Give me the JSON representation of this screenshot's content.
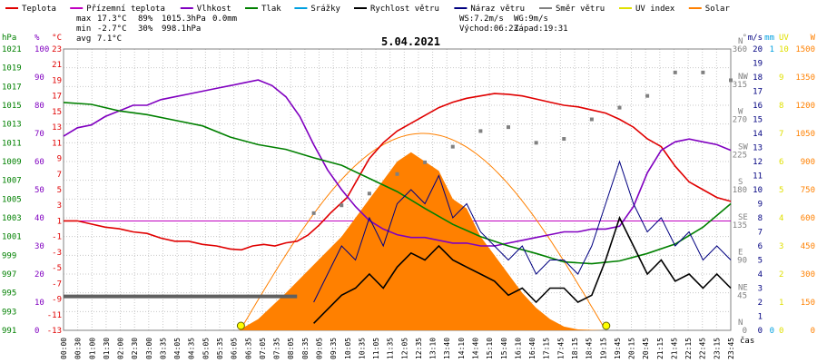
{
  "legend": [
    {
      "label": "Teplota",
      "color": "#e00000"
    },
    {
      "label": "Přízemní teplota",
      "color": "#c000c0"
    },
    {
      "label": "Vlhkost",
      "color": "#8000c0"
    },
    {
      "label": "Tlak",
      "color": "#008000"
    },
    {
      "label": "Srážky",
      "color": "#00a0e0"
    },
    {
      "label": "Rychlost větru",
      "color": "#000000"
    },
    {
      "label": "Náraz větru",
      "color": "#000080"
    },
    {
      "label": "Směr větru",
      "color": "#808080"
    },
    {
      "label": "UV index",
      "color": "#e0e000"
    },
    {
      "label": "Solar",
      "color": "#ff8000"
    }
  ],
  "stats": {
    "max": {
      "label": "max",
      "temp": "17.3°C",
      "hum": "89%",
      "press": "1015.3hPa",
      "rain": "0.0mm"
    },
    "min": {
      "label": "min",
      "temp": "-2.7°C",
      "hum": "30%",
      "press": "998.1hPa"
    },
    "avg": {
      "label": "avg",
      "temp": "7.1°C"
    }
  },
  "wind_stats": {
    "ws": "WS:7.2m/s",
    "wg": "WG:9m/s",
    "sunrise": "Východ:06:23",
    "sunset": "Západ:19:31"
  },
  "date": "5.04.2021",
  "xlabel": "čas",
  "colors": {
    "grid": "#c8c8c8",
    "solar_fill": "#ff8000",
    "solar_line": "#ff8000",
    "dir_marker": "#808080",
    "sun_marker": "#ffff00"
  },
  "chart_data": {
    "type": "line",
    "x_ticks": [
      "00:00",
      "00:30",
      "01:00",
      "01:30",
      "02:00",
      "02:30",
      "03:00",
      "03:35",
      "04:05",
      "04:35",
      "05:05",
      "05:35",
      "06:05",
      "06:35",
      "07:05",
      "07:35",
      "08:05",
      "08:35",
      "09:05",
      "09:35",
      "10:05",
      "10:35",
      "11:05",
      "11:35",
      "12:05",
      "12:35",
      "13:10",
      "13:40",
      "14:10",
      "14:40",
      "15:10",
      "15:40",
      "16:10",
      "16:40",
      "17:15",
      "17:45",
      "18:15",
      "18:45",
      "19:15",
      "19:45",
      "20:15",
      "20:45",
      "21:15",
      "21:45",
      "22:15",
      "22:45",
      "23:15",
      "23:45"
    ],
    "axes": {
      "hpa": {
        "unit": "hPa",
        "color": "#008000",
        "ticks": [
          "991",
          "993",
          "995",
          "997",
          "999",
          "1001",
          "1003",
          "1005",
          "1007",
          "1009",
          "1011",
          "1013",
          "1015",
          "1017",
          "1019",
          "1021"
        ]
      },
      "pct": {
        "unit": "%",
        "color": "#8000c0",
        "ticks": [
          "0",
          "10",
          "20",
          "30",
          "40",
          "50",
          "60",
          "70",
          "80",
          "90",
          "100"
        ]
      },
      "degc": {
        "unit": "°C",
        "color": "#e00000",
        "ticks": [
          "-13",
          "-11",
          "-9",
          "-7",
          "-5",
          "-3",
          "-1",
          "1",
          "3",
          "5",
          "7",
          "9",
          "11",
          "13",
          "15",
          "17",
          "19",
          "21",
          "23"
        ]
      },
      "dir": {
        "unit": "°",
        "color": "#808080",
        "ticks": [
          "0",
          "45",
          "90",
          "135",
          "180",
          "225",
          "270",
          "315",
          "360"
        ],
        "labels": [
          "N",
          "NE",
          "E",
          "SE",
          "S",
          "SW",
          "W",
          "NW",
          "N"
        ]
      },
      "ms": {
        "unit": "m/s",
        "color": "#000080",
        "ticks": [
          "0",
          "1",
          "2",
          "3",
          "4",
          "5",
          "6",
          "7",
          "8",
          "9",
          "10",
          "11",
          "12",
          "13",
          "14",
          "15",
          "16",
          "17",
          "18",
          "19",
          "20"
        ]
      },
      "mm": {
        "unit": "mm",
        "color": "#00a0e0",
        "ticks": [
          "0",
          "1"
        ]
      },
      "uv": {
        "unit": "UV",
        "color": "#e0e000",
        "ticks": [
          "0",
          "1",
          "2",
          "3",
          "4",
          "5",
          "6",
          "7",
          "8",
          "9",
          "10"
        ]
      },
      "w": {
        "unit": "W",
        "color": "#ff8000",
        "ticks": [
          "0",
          "150",
          "300",
          "450",
          "600",
          "750",
          "900",
          "1050",
          "1200",
          "1350",
          "1500"
        ]
      }
    },
    "series": [
      {
        "name": "Teplota",
        "unit": "°C",
        "color": "#e00000",
        "points": [
          [
            0,
            1
          ],
          [
            0.5,
            1
          ],
          [
            1,
            0.6
          ],
          [
            1.5,
            0.2
          ],
          [
            2,
            0
          ],
          [
            2.5,
            -0.4
          ],
          [
            3,
            -0.6
          ],
          [
            3.5,
            -1.2
          ],
          [
            4,
            -1.6
          ],
          [
            4.5,
            -1.6
          ],
          [
            5,
            -2
          ],
          [
            5.5,
            -2.2
          ],
          [
            6,
            -2.6
          ],
          [
            6.4,
            -2.7
          ],
          [
            6.8,
            -2.2
          ],
          [
            7.2,
            -2
          ],
          [
            7.6,
            -2.2
          ],
          [
            8,
            -1.8
          ],
          [
            8.4,
            -1.6
          ],
          [
            8.8,
            -0.8
          ],
          [
            9.2,
            0.5
          ],
          [
            9.6,
            2
          ],
          [
            10.2,
            4
          ],
          [
            10.6,
            6.5
          ],
          [
            11,
            9
          ],
          [
            11.5,
            11
          ],
          [
            12,
            12.5
          ],
          [
            12.5,
            13.5
          ],
          [
            13,
            14.5
          ],
          [
            13.5,
            15.5
          ],
          [
            14,
            16.2
          ],
          [
            14.5,
            16.7
          ],
          [
            15,
            17
          ],
          [
            15.5,
            17.3
          ],
          [
            16,
            17.2
          ],
          [
            16.5,
            17
          ],
          [
            17,
            16.6
          ],
          [
            17.5,
            16.2
          ],
          [
            18,
            15.8
          ],
          [
            18.5,
            15.6
          ],
          [
            19,
            15.2
          ],
          [
            19.5,
            14.8
          ],
          [
            20,
            14
          ],
          [
            20.5,
            13
          ],
          [
            21,
            11.5
          ],
          [
            21.5,
            10.5
          ],
          [
            22,
            8
          ],
          [
            22.5,
            6
          ],
          [
            23,
            5
          ],
          [
            23.5,
            4
          ],
          [
            24,
            3.5
          ]
        ]
      },
      {
        "name": "Vlhkost",
        "unit": "%",
        "color": "#8000c0",
        "points": [
          [
            0,
            69
          ],
          [
            0.5,
            72
          ],
          [
            1,
            73
          ],
          [
            1.5,
            76
          ],
          [
            2,
            78
          ],
          [
            2.5,
            80
          ],
          [
            3,
            80
          ],
          [
            3.5,
            82
          ],
          [
            4,
            83
          ],
          [
            4.5,
            84
          ],
          [
            5,
            85
          ],
          [
            5.5,
            86
          ],
          [
            6,
            87
          ],
          [
            6.5,
            88
          ],
          [
            7,
            89
          ],
          [
            7.5,
            87
          ],
          [
            8,
            83
          ],
          [
            8.5,
            76
          ],
          [
            9,
            66
          ],
          [
            9.5,
            57
          ],
          [
            10,
            50
          ],
          [
            10.5,
            44
          ],
          [
            11,
            39
          ],
          [
            11.5,
            36
          ],
          [
            12,
            34
          ],
          [
            12.5,
            33
          ],
          [
            13,
            33
          ],
          [
            13.5,
            32
          ],
          [
            14,
            31
          ],
          [
            14.5,
            31
          ],
          [
            15,
            30
          ],
          [
            15.5,
            30
          ],
          [
            16,
            31
          ],
          [
            16.5,
            32
          ],
          [
            17,
            33
          ],
          [
            17.5,
            34
          ],
          [
            18,
            35
          ],
          [
            18.5,
            35
          ],
          [
            19,
            36
          ],
          [
            19.5,
            36
          ],
          [
            20,
            37
          ],
          [
            20.5,
            44
          ],
          [
            21,
            56
          ],
          [
            21.5,
            64
          ],
          [
            22,
            67
          ],
          [
            22.5,
            68
          ],
          [
            23,
            67
          ],
          [
            23.5,
            66
          ],
          [
            24,
            64
          ]
        ]
      },
      {
        "name": "Tlak",
        "unit": "hPa",
        "color": "#008000",
        "points": [
          [
            0,
            1015.3
          ],
          [
            1,
            1015.1
          ],
          [
            2,
            1014.4
          ],
          [
            3,
            1014.0
          ],
          [
            4,
            1013.4
          ],
          [
            5,
            1012.8
          ],
          [
            6,
            1011.6
          ],
          [
            7,
            1010.8
          ],
          [
            8,
            1010.3
          ],
          [
            9,
            1009.4
          ],
          [
            10,
            1008.6
          ],
          [
            11,
            1007.2
          ],
          [
            12,
            1005.8
          ],
          [
            13,
            1004.0
          ],
          [
            14,
            1002.3
          ],
          [
            15,
            1001.0
          ],
          [
            16,
            1000.0
          ],
          [
            17,
            999.2
          ],
          [
            18,
            998.3
          ],
          [
            19,
            998.1
          ],
          [
            20,
            998.4
          ],
          [
            21,
            999.2
          ],
          [
            22,
            1000.2
          ],
          [
            23,
            1002.0
          ],
          [
            24,
            1004.5
          ]
        ]
      },
      {
        "name": "Rychlost větru",
        "unit": "m/s",
        "color": "#000000",
        "points": [
          [
            9,
            0.5
          ],
          [
            9.5,
            1.5
          ],
          [
            10,
            2.5
          ],
          [
            10.5,
            3
          ],
          [
            11,
            4
          ],
          [
            11.5,
            3
          ],
          [
            12,
            4.5
          ],
          [
            12.5,
            5.5
          ],
          [
            13,
            5
          ],
          [
            13.5,
            6
          ],
          [
            14,
            5
          ],
          [
            14.5,
            4.5
          ],
          [
            15,
            4
          ],
          [
            15.5,
            3.5
          ],
          [
            16,
            2.5
          ],
          [
            16.5,
            3
          ],
          [
            17,
            2
          ],
          [
            17.5,
            3
          ],
          [
            18,
            3
          ],
          [
            18.5,
            2
          ],
          [
            19,
            2.5
          ],
          [
            19.5,
            5
          ],
          [
            20,
            8
          ],
          [
            20.5,
            6
          ],
          [
            21,
            4
          ],
          [
            21.5,
            5
          ],
          [
            22,
            3.5
          ],
          [
            22.5,
            4
          ],
          [
            23,
            3
          ],
          [
            23.5,
            4
          ],
          [
            24,
            3
          ]
        ]
      },
      {
        "name": "Náraz větru",
        "unit": "m/s",
        "color": "#000080",
        "points": [
          [
            9,
            2
          ],
          [
            9.5,
            4
          ],
          [
            10,
            6
          ],
          [
            10.5,
            5
          ],
          [
            11,
            8
          ],
          [
            11.5,
            6
          ],
          [
            12,
            9
          ],
          [
            12.5,
            10
          ],
          [
            13,
            9
          ],
          [
            13.5,
            11
          ],
          [
            14,
            8
          ],
          [
            14.5,
            9
          ],
          [
            15,
            7
          ],
          [
            15.5,
            6
          ],
          [
            16,
            5
          ],
          [
            16.5,
            6
          ],
          [
            17,
            4
          ],
          [
            17.5,
            5
          ],
          [
            18,
            5
          ],
          [
            18.5,
            4
          ],
          [
            19,
            6
          ],
          [
            19.5,
            9
          ],
          [
            20,
            12
          ],
          [
            20.5,
            9
          ],
          [
            21,
            7
          ],
          [
            21.5,
            8
          ],
          [
            22,
            6
          ],
          [
            22.5,
            7
          ],
          [
            23,
            5
          ],
          [
            23.5,
            6
          ],
          [
            24,
            5
          ]
        ]
      },
      {
        "name": "Solar",
        "unit": "W",
        "color": "#ff8000",
        "points": [
          [
            6.3,
            0
          ],
          [
            7,
            60
          ],
          [
            8,
            200
          ],
          [
            9,
            350
          ],
          [
            10,
            500
          ],
          [
            11,
            700
          ],
          [
            11.5,
            800
          ],
          [
            12,
            900
          ],
          [
            12.5,
            950
          ],
          [
            13,
            900
          ],
          [
            13.5,
            850
          ],
          [
            14,
            700
          ],
          [
            14.5,
            650
          ],
          [
            15,
            500
          ],
          [
            15.5,
            400
          ],
          [
            16,
            300
          ],
          [
            16.5,
            200
          ],
          [
            17,
            120
          ],
          [
            17.5,
            60
          ],
          [
            18,
            20
          ],
          [
            18.5,
            5
          ],
          [
            19.5,
            0
          ]
        ]
      },
      {
        "name": "Směr větru",
        "unit": "°",
        "color": "#808080",
        "points": [
          [
            9,
            150
          ],
          [
            10,
            160
          ],
          [
            11,
            175
          ],
          [
            12,
            200
          ],
          [
            13,
            215
          ],
          [
            14,
            235
          ],
          [
            15,
            255
          ],
          [
            16,
            260
          ],
          [
            17,
            240
          ],
          [
            18,
            245
          ],
          [
            19,
            270
          ],
          [
            20,
            285
          ],
          [
            21,
            300
          ],
          [
            22,
            330
          ],
          [
            23,
            330
          ],
          [
            24,
            320
          ]
        ]
      }
    ]
  }
}
